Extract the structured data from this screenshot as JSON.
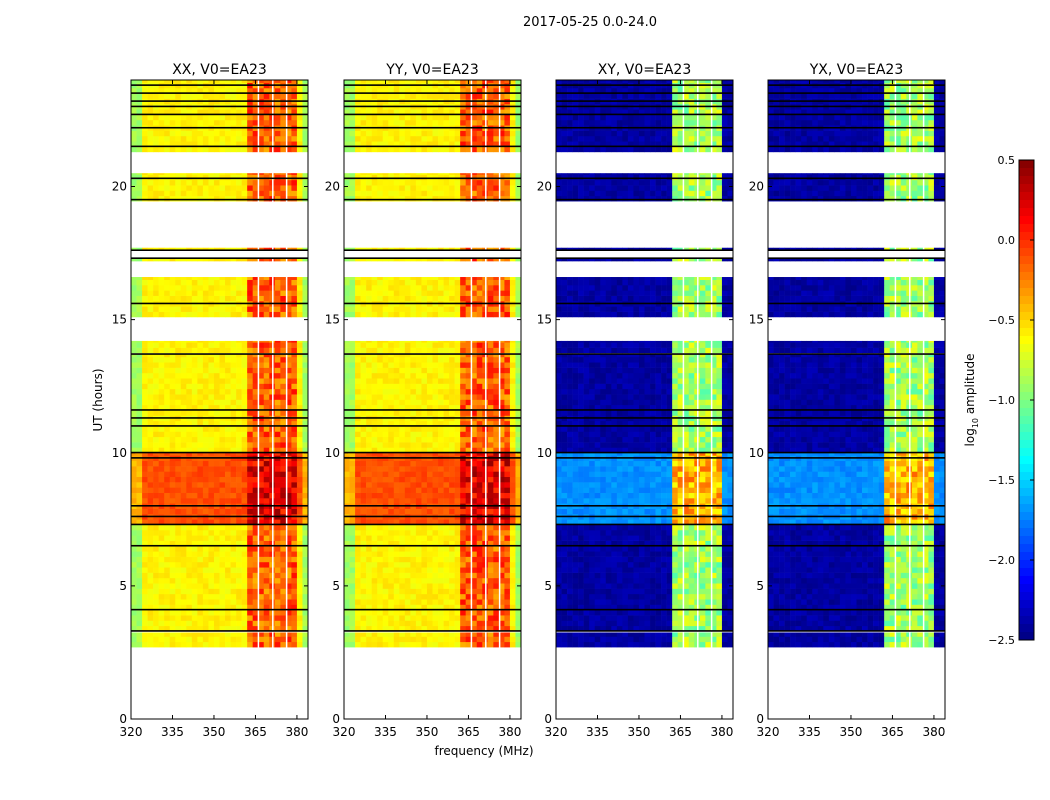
{
  "chart_data": {
    "type": "heatmap",
    "title": "2017-05-25 0.0-24.0",
    "xlabel": "frequency (MHz)",
    "ylabel": "UT (hours)",
    "xlim": [
      320,
      384
    ],
    "ylim": [
      0,
      24
    ],
    "xticks": [
      "320",
      "335",
      "350",
      "365",
      "380"
    ],
    "yticks": [
      "0",
      "5",
      "10",
      "15",
      "20"
    ],
    "panels": [
      {
        "title": "XX, V0=EA23",
        "kind": "parallel"
      },
      {
        "title": "YY, V0=EA23",
        "kind": "parallel"
      },
      {
        "title": "XY, V0=EA23",
        "kind": "cross"
      },
      {
        "title": "YX, V0=EA23",
        "kind": "cross"
      }
    ],
    "time_ranges_with_data": [
      [
        2.7,
        3.25
      ],
      [
        3.3,
        7.3
      ],
      [
        7.3,
        10.0
      ],
      [
        10.0,
        11.0
      ],
      [
        11.0,
        13.7
      ],
      [
        13.75,
        14.2
      ],
      [
        15.1,
        16.6
      ],
      [
        17.2,
        17.3
      ],
      [
        17.6,
        17.7
      ],
      [
        19.45,
        20.5
      ],
      [
        21.3,
        24
      ]
    ],
    "flagged_hours": [
      3.3,
      4.1,
      6.5,
      7.3,
      7.6,
      8.0,
      9.8,
      10.0,
      11.0,
      11.3,
      11.6,
      13.7,
      15.6,
      17.3,
      17.6,
      19.5,
      20.3,
      21.5,
      22.2,
      22.7,
      23.0,
      23.2,
      23.5,
      23.8
    ],
    "strong_period_hours": [
      7.3,
      10.0
    ],
    "rfi_band_mhz": [
      362,
      380
    ],
    "rfi_gap_mhz": [
      365.8,
      371,
      376
    ],
    "log_amplitude": {
      "parallel": {
        "low": -0.6,
        "high": -0.15,
        "low_strong": -0.1,
        "high_strong": 0.2
      },
      "cross": {
        "low": -2.4,
        "high": -0.9,
        "low_strong": -1.7,
        "high_strong": -0.4
      }
    },
    "colorbar": {
      "label": "log10 amplitude",
      "label_main": "log",
      "label_sub": "10",
      "label_rest": " amplitude",
      "range": [
        -2.5,
        0.5
      ],
      "ticks": [
        "0.5",
        "0.0",
        "−0.5",
        "−1.0",
        "−1.5",
        "−2.0",
        "−2.5"
      ]
    }
  }
}
